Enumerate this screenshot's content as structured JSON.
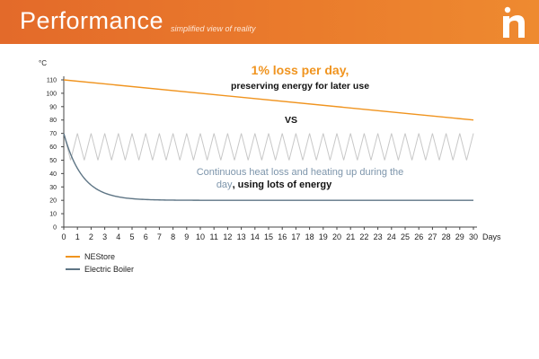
{
  "header": {
    "title": "Performance",
    "subtitle": "simplified view of reality",
    "logo_letter": "n"
  },
  "colors": {
    "header": "#e8722b",
    "nestore": "#f0941f",
    "boiler": "#5e7585",
    "zigzag": "#c8c8c8",
    "annotation_orange": "#f0941f",
    "annotation_grey": "#7d95ab"
  },
  "annotations": {
    "loss_title": "1% loss per day,",
    "loss_sub": "preserving energy for later use",
    "vs": "VS",
    "boiler_line1": "Continuous heat loss and heating up during the",
    "boiler_line2_grey": "day",
    "boiler_line2_black": ", using lots of energy"
  },
  "legend": [
    {
      "label": "NEStore",
      "color": "#f0941f"
    },
    {
      "label": "Electric Boiler",
      "color": "#5e7585"
    }
  ],
  "chart_data": {
    "type": "line",
    "ylabel": "°C",
    "xlabel": "Days",
    "xlim": [
      0,
      30
    ],
    "ylim": [
      0,
      110
    ],
    "x_ticks": [
      0,
      1,
      2,
      3,
      4,
      5,
      6,
      7,
      8,
      9,
      10,
      11,
      12,
      13,
      14,
      15,
      16,
      17,
      18,
      19,
      20,
      21,
      22,
      23,
      24,
      25,
      26,
      27,
      28,
      29,
      30
    ],
    "y_ticks": [
      0,
      10,
      20,
      30,
      40,
      50,
      60,
      70,
      80,
      90,
      100,
      110
    ],
    "grid": false,
    "legend_position": "bottom-left",
    "series": [
      {
        "name": "NEStore",
        "color": "#f0941f",
        "x": [
          0,
          30
        ],
        "y": [
          110,
          80
        ]
      },
      {
        "name": "Electric Boiler",
        "color": "#5e7585",
        "x": [
          0,
          0.5,
          1,
          1.5,
          2,
          3,
          4,
          5,
          6,
          7,
          8,
          10,
          15,
          20,
          25,
          30
        ],
        "y": [
          70,
          50,
          38,
          31,
          27,
          23,
          21.5,
          20.8,
          20.4,
          20.2,
          20.1,
          20,
          20,
          20,
          20,
          20
        ]
      }
    ],
    "zigzag": {
      "color": "#c8c8c8",
      "y_low": 50,
      "y_high": 70,
      "period_days": 1
    }
  }
}
